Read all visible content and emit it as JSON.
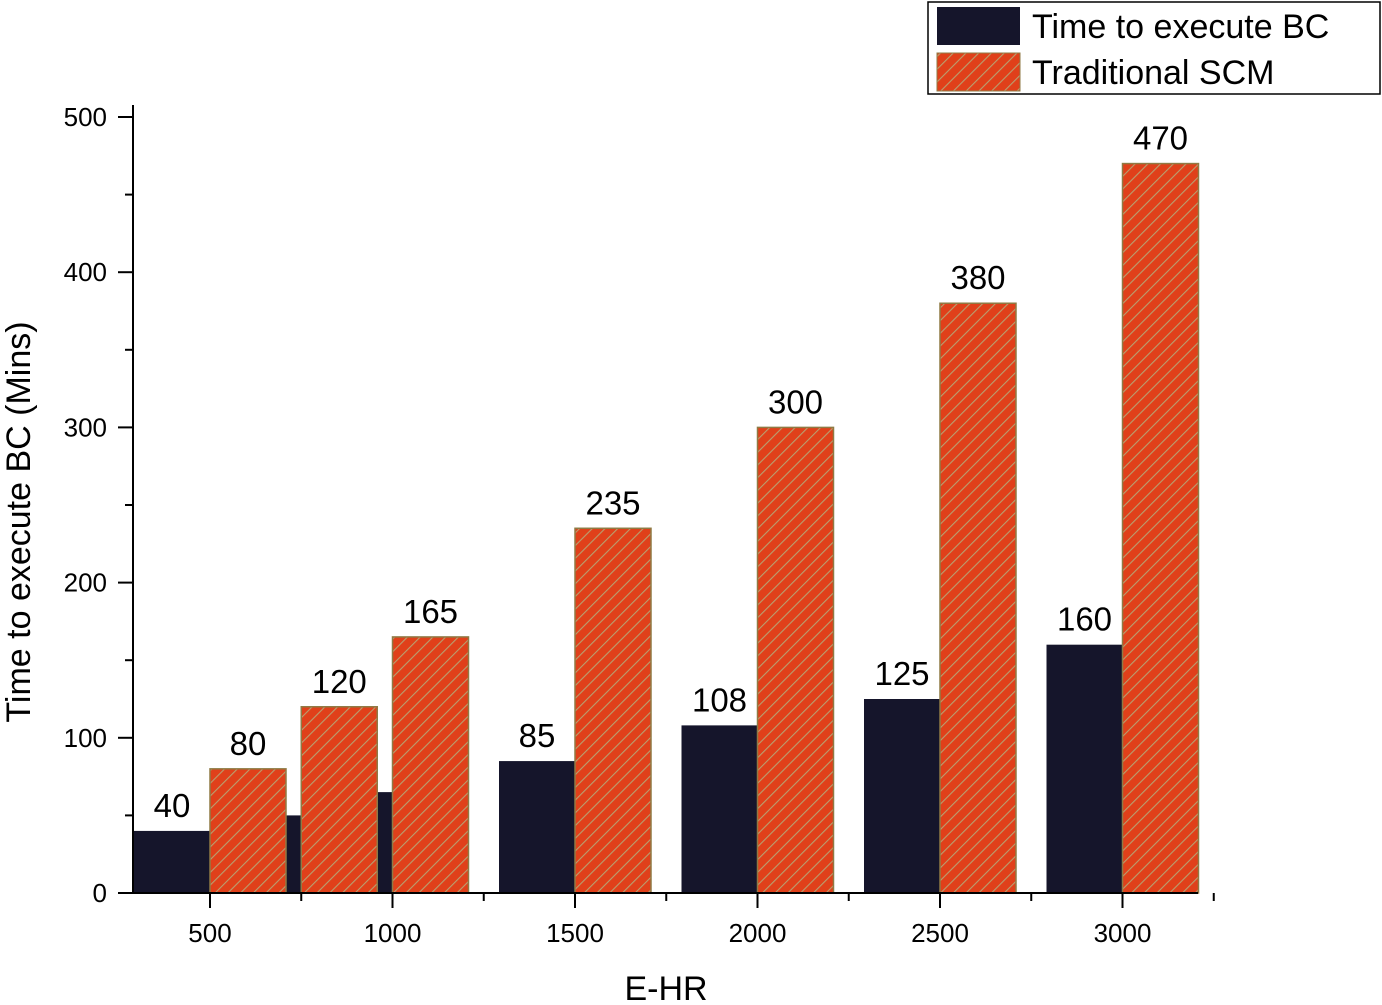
{
  "chart_data": {
    "type": "bar",
    "x_tick_labels": [
      "500",
      "1000",
      "1500",
      "2000",
      "2500",
      "3000"
    ],
    "xlabel": "E-HR",
    "ylabel": "Time to execute BC (Mins)",
    "ylim": [
      0,
      500
    ],
    "y_ticks": [
      "0",
      "100",
      "200",
      "300",
      "400",
      "500"
    ],
    "legend_position": "top-right",
    "grid": false,
    "series": [
      {
        "name": "Time to execute BC",
        "color": "#15152b",
        "x": [
          500,
          750,
          1000,
          1500,
          2000,
          2500,
          3000
        ],
        "values": [
          40,
          50,
          65,
          85,
          108,
          125,
          160
        ],
        "data_labels": [
          "40",
          "",
          "",
          "85",
          "108",
          "125",
          "160"
        ]
      },
      {
        "name": "Traditional SCM",
        "color": "#e0401a",
        "x": [
          500,
          750,
          1000,
          1500,
          2000,
          2500,
          3000
        ],
        "values": [
          80,
          120,
          165,
          235,
          300,
          380,
          470
        ],
        "data_labels": [
          "80",
          "120",
          "165",
          "235",
          "300",
          "380",
          "470"
        ]
      }
    ]
  }
}
